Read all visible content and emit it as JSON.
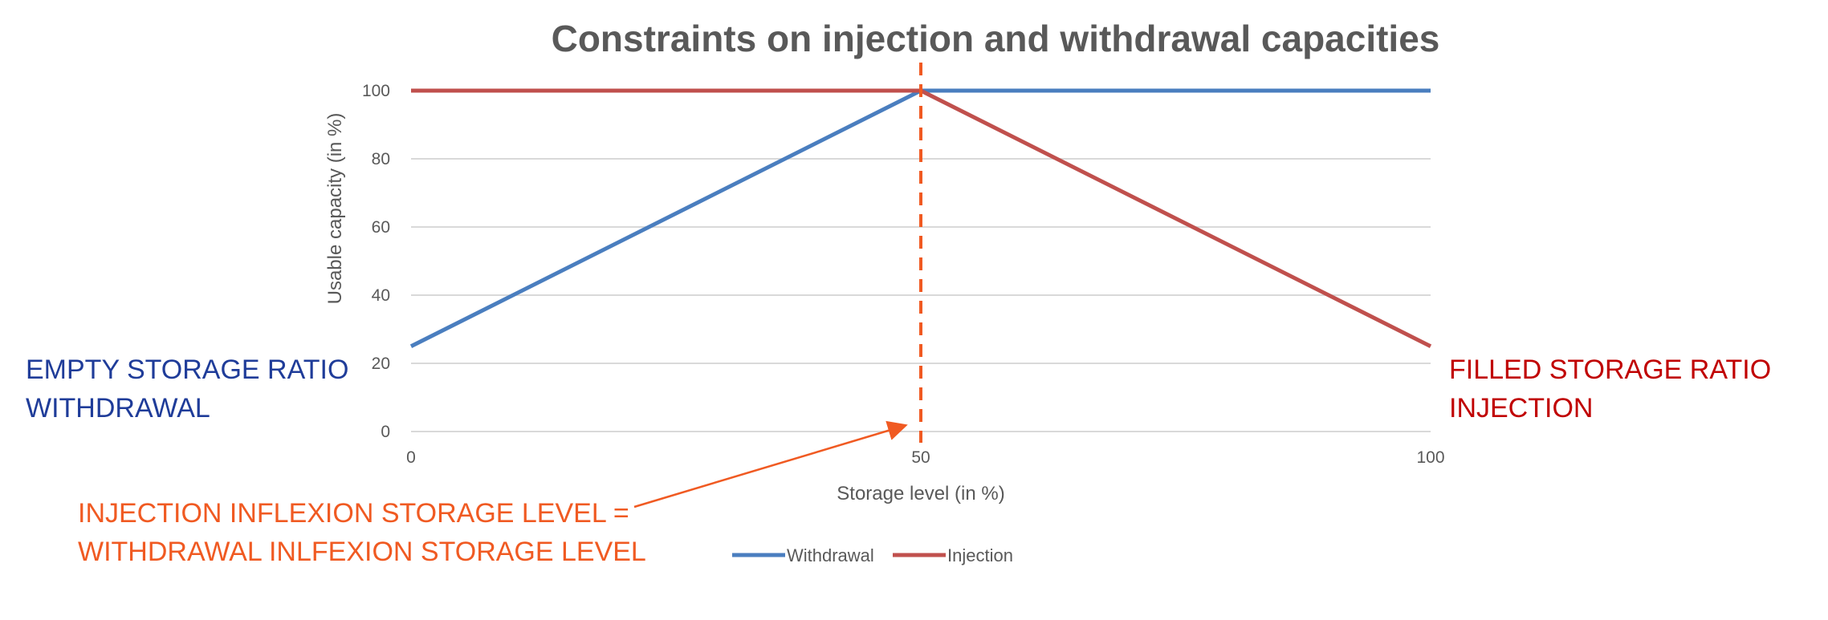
{
  "chart_data": {
    "type": "line",
    "title": "Constraints on injection and withdrawal capacities",
    "xlabel": "Storage level (in %)",
    "ylabel": "Usable capacity (in %)",
    "xlim": [
      0,
      100
    ],
    "ylim": [
      0,
      100
    ],
    "x_ticks": [
      0,
      50,
      100
    ],
    "y_ticks": [
      0,
      20,
      40,
      60,
      80,
      100
    ],
    "grid": true,
    "legend_position": "bottom",
    "series": [
      {
        "name": "Withdrawal",
        "color": "#4a7ebf",
        "points": [
          [
            0,
            25
          ],
          [
            50,
            100
          ],
          [
            100,
            100
          ]
        ]
      },
      {
        "name": "Injection",
        "color": "#c0504d",
        "points": [
          [
            0,
            100
          ],
          [
            50,
            100
          ],
          [
            100,
            25
          ]
        ]
      }
    ],
    "inflexion_line": {
      "x": 50,
      "color": "#f05a22"
    },
    "annotations": {
      "left": {
        "line1": "EMPTY STORAGE RATIO",
        "line2": "WITHDRAWAL",
        "color": "#1f3c99"
      },
      "right": {
        "line1": "FILLED STORAGE RATIO",
        "line2": "INJECTION",
        "color": "#c00000"
      },
      "bottom": {
        "line1": "INJECTION INFLEXION STORAGE LEVEL =",
        "line2": "WITHDRAWAL INLFEXION STORAGE LEVEL",
        "color": "#f05a22"
      }
    }
  }
}
